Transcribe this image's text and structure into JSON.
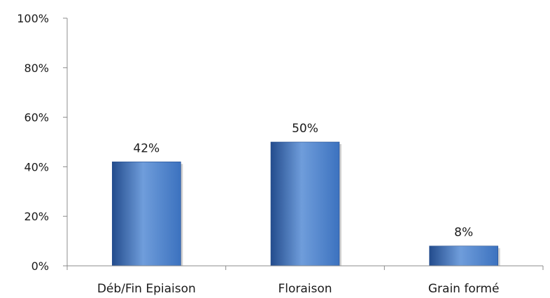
{
  "chart_data": {
    "type": "bar",
    "categories": [
      "Déb/Fin Epiaison",
      "Floraison",
      "Grain formé"
    ],
    "values": [
      42,
      50,
      8
    ],
    "data_labels": [
      "42%",
      "50%",
      "8%"
    ],
    "y_ticks": [
      0,
      20,
      40,
      60,
      80,
      100
    ],
    "y_tick_labels": [
      "0%",
      "20%",
      "40%",
      "60%",
      "80%",
      "100%"
    ],
    "ylim": [
      0,
      100
    ],
    "title": "",
    "xlabel": "",
    "ylabel": "",
    "grid": false,
    "legend": "none",
    "bar_color": "#3c72bf",
    "bar_color_dark": "#234c8d",
    "bar_color_light": "#6f9ddb",
    "axis_color": "#8c8c8c"
  }
}
